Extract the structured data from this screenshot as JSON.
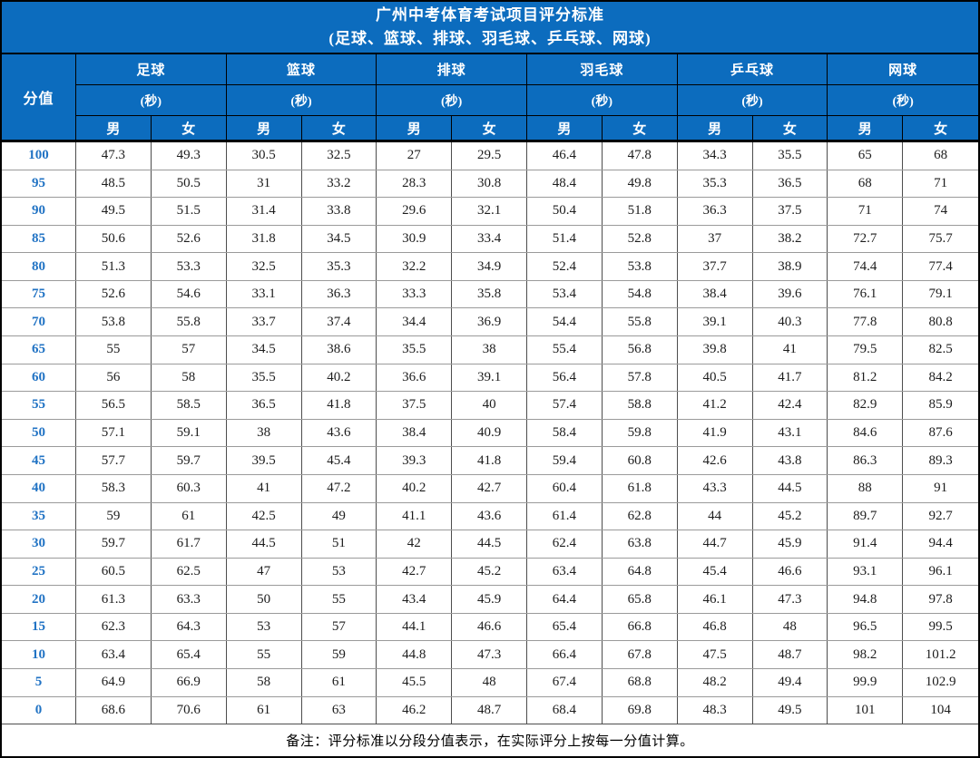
{
  "title": {
    "line1": "广州中考体育考试项目评分标准",
    "line2": "(足球、篮球、排球、羽毛球、乒乓球、网球)"
  },
  "header": {
    "score_label": "分值",
    "unit_label": "(秒)",
    "male_label": "男",
    "female_label": "女",
    "groups": [
      "足球",
      "篮球",
      "排球",
      "羽毛球",
      "乒乓球",
      "网球"
    ]
  },
  "rows": [
    {
      "score": "100",
      "values": [
        "47.3",
        "49.3",
        "30.5",
        "32.5",
        "27",
        "29.5",
        "46.4",
        "47.8",
        "34.3",
        "35.5",
        "65",
        "68"
      ]
    },
    {
      "score": "95",
      "values": [
        "48.5",
        "50.5",
        "31",
        "33.2",
        "28.3",
        "30.8",
        "48.4",
        "49.8",
        "35.3",
        "36.5",
        "68",
        "71"
      ]
    },
    {
      "score": "90",
      "values": [
        "49.5",
        "51.5",
        "31.4",
        "33.8",
        "29.6",
        "32.1",
        "50.4",
        "51.8",
        "36.3",
        "37.5",
        "71",
        "74"
      ]
    },
    {
      "score": "85",
      "values": [
        "50.6",
        "52.6",
        "31.8",
        "34.5",
        "30.9",
        "33.4",
        "51.4",
        "52.8",
        "37",
        "38.2",
        "72.7",
        "75.7"
      ]
    },
    {
      "score": "80",
      "values": [
        "51.3",
        "53.3",
        "32.5",
        "35.3",
        "32.2",
        "34.9",
        "52.4",
        "53.8",
        "37.7",
        "38.9",
        "74.4",
        "77.4"
      ]
    },
    {
      "score": "75",
      "values": [
        "52.6",
        "54.6",
        "33.1",
        "36.3",
        "33.3",
        "35.8",
        "53.4",
        "54.8",
        "38.4",
        "39.6",
        "76.1",
        "79.1"
      ]
    },
    {
      "score": "70",
      "values": [
        "53.8",
        "55.8",
        "33.7",
        "37.4",
        "34.4",
        "36.9",
        "54.4",
        "55.8",
        "39.1",
        "40.3",
        "77.8",
        "80.8"
      ]
    },
    {
      "score": "65",
      "values": [
        "55",
        "57",
        "34.5",
        "38.6",
        "35.5",
        "38",
        "55.4",
        "56.8",
        "39.8",
        "41",
        "79.5",
        "82.5"
      ]
    },
    {
      "score": "60",
      "values": [
        "56",
        "58",
        "35.5",
        "40.2",
        "36.6",
        "39.1",
        "56.4",
        "57.8",
        "40.5",
        "41.7",
        "81.2",
        "84.2"
      ]
    },
    {
      "score": "55",
      "values": [
        "56.5",
        "58.5",
        "36.5",
        "41.8",
        "37.5",
        "40",
        "57.4",
        "58.8",
        "41.2",
        "42.4",
        "82.9",
        "85.9"
      ]
    },
    {
      "score": "50",
      "values": [
        "57.1",
        "59.1",
        "38",
        "43.6",
        "38.4",
        "40.9",
        "58.4",
        "59.8",
        "41.9",
        "43.1",
        "84.6",
        "87.6"
      ]
    },
    {
      "score": "45",
      "values": [
        "57.7",
        "59.7",
        "39.5",
        "45.4",
        "39.3",
        "41.8",
        "59.4",
        "60.8",
        "42.6",
        "43.8",
        "86.3",
        "89.3"
      ]
    },
    {
      "score": "40",
      "values": [
        "58.3",
        "60.3",
        "41",
        "47.2",
        "40.2",
        "42.7",
        "60.4",
        "61.8",
        "43.3",
        "44.5",
        "88",
        "91"
      ]
    },
    {
      "score": "35",
      "values": [
        "59",
        "61",
        "42.5",
        "49",
        "41.1",
        "43.6",
        "61.4",
        "62.8",
        "44",
        "45.2",
        "89.7",
        "92.7"
      ]
    },
    {
      "score": "30",
      "values": [
        "59.7",
        "61.7",
        "44.5",
        "51",
        "42",
        "44.5",
        "62.4",
        "63.8",
        "44.7",
        "45.9",
        "91.4",
        "94.4"
      ]
    },
    {
      "score": "25",
      "values": [
        "60.5",
        "62.5",
        "47",
        "53",
        "42.7",
        "45.2",
        "63.4",
        "64.8",
        "45.4",
        "46.6",
        "93.1",
        "96.1"
      ]
    },
    {
      "score": "20",
      "values": [
        "61.3",
        "63.3",
        "50",
        "55",
        "43.4",
        "45.9",
        "64.4",
        "65.8",
        "46.1",
        "47.3",
        "94.8",
        "97.8"
      ]
    },
    {
      "score": "15",
      "values": [
        "62.3",
        "64.3",
        "53",
        "57",
        "44.1",
        "46.6",
        "65.4",
        "66.8",
        "46.8",
        "48",
        "96.5",
        "99.5"
      ]
    },
    {
      "score": "10",
      "values": [
        "63.4",
        "65.4",
        "55",
        "59",
        "44.8",
        "47.3",
        "66.4",
        "67.8",
        "47.5",
        "48.7",
        "98.2",
        "101.2"
      ]
    },
    {
      "score": "5",
      "values": [
        "64.9",
        "66.9",
        "58",
        "61",
        "45.5",
        "48",
        "67.4",
        "68.8",
        "48.2",
        "49.4",
        "99.9",
        "102.9"
      ]
    },
    {
      "score": "0",
      "values": [
        "68.6",
        "70.6",
        "61",
        "63",
        "46.2",
        "48.7",
        "68.4",
        "69.8",
        "48.3",
        "49.5",
        "101",
        "104"
      ]
    }
  ],
  "footer": {
    "note": "备注：评分标准以分段分值表示，在实际评分上按每一分值计算。"
  },
  "colors": {
    "header_bg": "#0C6CBE",
    "score_text": "#2173C4"
  }
}
